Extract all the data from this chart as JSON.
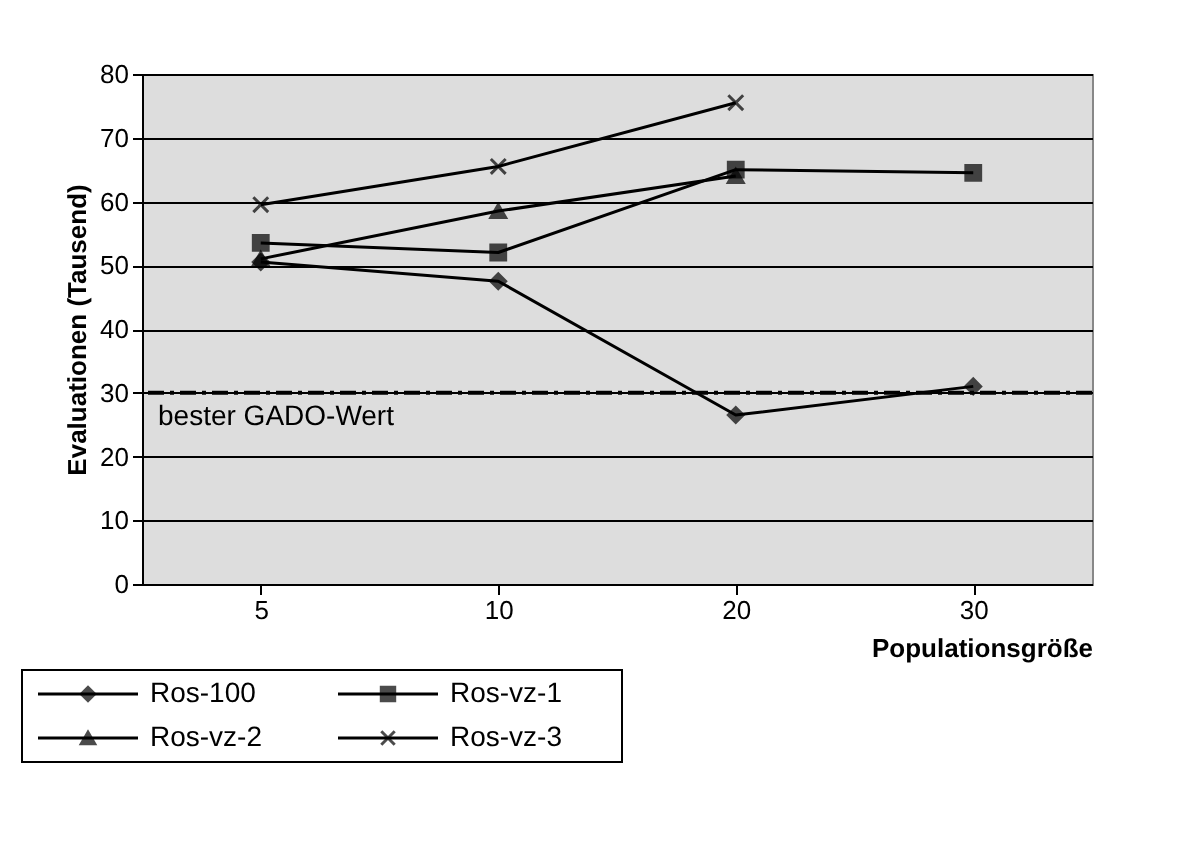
{
  "chart_data": {
    "type": "line",
    "xlabel": "Populationsgröße",
    "ylabel": "Evaluationen (Tausend)",
    "categories": [
      "5",
      "10",
      "20",
      "30"
    ],
    "series": [
      {
        "name": "Ros-100",
        "color": "#000000",
        "marker": "diamond",
        "values": [
          50.5,
          47.5,
          26.5,
          31
        ]
      },
      {
        "name": "Ros-vz-1",
        "color": "#000000",
        "marker": "square",
        "values": [
          53.5,
          52,
          65,
          64.5
        ]
      },
      {
        "name": "Ros-vz-2",
        "color": "#000000",
        "marker": "triangle",
        "values": [
          51,
          58.5,
          64,
          null
        ]
      },
      {
        "name": "Ros-vz-3",
        "color": "#000000",
        "marker": "cross",
        "values": [
          59.5,
          65.5,
          75.5,
          null
        ]
      }
    ],
    "ylim": [
      0,
      80
    ],
    "yticks": [
      0,
      10,
      20,
      30,
      40,
      50,
      60,
      70,
      80
    ],
    "grid": "y",
    "legend": "bottom left",
    "line_style": "solid",
    "ref_lines": [
      {
        "axis": "y",
        "value": 30,
        "label": "bester GADO-Wert",
        "color": "#000000",
        "line_style": "dashdot"
      }
    ]
  }
}
